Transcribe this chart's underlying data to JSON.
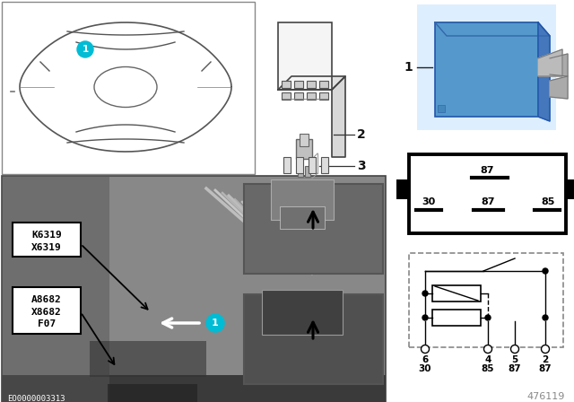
{
  "bg_color": "#ffffff",
  "label_color": "#00bcd4",
  "image_number": "476119",
  "eo_number": "EO0000003313",
  "callout_labels_top": [
    "K6319",
    "X6319"
  ],
  "callout_labels_bottom": [
    "A8682",
    "X8682",
    "F07"
  ],
  "pin_diagram_labels": [
    "87",
    "30",
    "87",
    "85"
  ],
  "circuit_pin_top": [
    "6",
    "4",
    "5",
    "2"
  ],
  "circuit_pin_bot": [
    "30",
    "85",
    "87",
    "87"
  ],
  "part_nums": [
    "1",
    "2",
    "3"
  ],
  "photo_bg": "#7a7a7a",
  "photo_dark": "#4a4a4a",
  "inset_bg": "#606060"
}
